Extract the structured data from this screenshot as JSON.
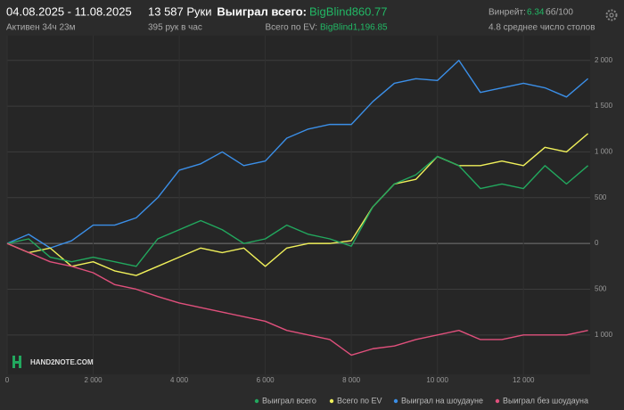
{
  "header": {
    "date_range": "04.08.2025 - 11.08.2025",
    "active": "Активен 34ч 23м",
    "hands": "13 587 Руки",
    "hands_per_hour": "395 рук в час",
    "won_label": "Выиграл всего:",
    "won_value": "BigBlind860.77",
    "ev_label": "Всего по EV:",
    "ev_value": "BigBlind1,196.85",
    "winrate_label": "Винрейт:",
    "winrate_value": "6.34",
    "winrate_unit": "бб/100",
    "tables": "4.8 среднее число столов",
    "logo": "HAND2NOTE.COM"
  },
  "chart_data": {
    "type": "line",
    "x": [
      0,
      500,
      1000,
      1500,
      2000,
      2500,
      3000,
      3500,
      4000,
      4500,
      5000,
      5500,
      6000,
      6500,
      7000,
      7500,
      8000,
      8500,
      9000,
      9500,
      10000,
      10500,
      11000,
      11500,
      12000,
      12500,
      13000,
      13500
    ],
    "series": [
      {
        "name": "Выиграл всего",
        "color": "#22a85e",
        "values": [
          0,
          50,
          -150,
          -200,
          -150,
          -200,
          -250,
          50,
          150,
          250,
          150,
          0,
          50,
          200,
          100,
          50,
          -30,
          400,
          650,
          750,
          950,
          850,
          600,
          650,
          600,
          850,
          650,
          850
        ]
      },
      {
        "name": "Всего по EV",
        "color": "#f0f05a",
        "values": [
          0,
          -100,
          -50,
          -250,
          -200,
          -300,
          -350,
          -250,
          -150,
          -50,
          -100,
          -50,
          -250,
          -50,
          0,
          0,
          30,
          400,
          650,
          700,
          950,
          850,
          850,
          900,
          850,
          1050,
          1000,
          1200
        ]
      },
      {
        "name": "Выиграл на шоудауне",
        "color": "#3b8fe8",
        "values": [
          0,
          100,
          -50,
          30,
          200,
          200,
          280,
          500,
          800,
          870,
          1000,
          850,
          900,
          1150,
          1250,
          1300,
          1300,
          1550,
          1750,
          1800,
          1780,
          2000,
          1650,
          1700,
          1750,
          1700,
          1600,
          1800
        ]
      },
      {
        "name": "Выиграл без шоудауна",
        "color": "#e0507c",
        "values": [
          0,
          -100,
          -200,
          -250,
          -320,
          -450,
          -500,
          -580,
          -650,
          -700,
          -750,
          -800,
          -850,
          -950,
          -1000,
          -1050,
          -1220,
          -1150,
          -1120,
          -1050,
          -1000,
          -950,
          -1050,
          -1050,
          -1000,
          -1000,
          -1000,
          -950
        ]
      }
    ],
    "xlim": [
      0,
      13550
    ],
    "xticks": [
      0,
      {
        "value": 2000,
        "label": "2 000"
      },
      {
        "value": 4000,
        "label": "4 000"
      },
      {
        "value": 6000,
        "label": "6 000"
      },
      {
        "value": 8000,
        "label": "8 000"
      },
      {
        "value": 10000,
        "label": "10 000"
      },
      {
        "value": 12000,
        "label": "12 000"
      }
    ],
    "ylim": [
      -1430,
      2270
    ],
    "yticks": [
      {
        "value": 2000,
        "label": "2 000"
      },
      {
        "value": 1500,
        "label": "1 500"
      },
      {
        "value": 1000,
        "label": "1 000"
      },
      500,
      0,
      {
        "value": -500,
        "label": "500"
      },
      {
        "value": -1000,
        "label": "1 000"
      }
    ],
    "grid": true
  }
}
